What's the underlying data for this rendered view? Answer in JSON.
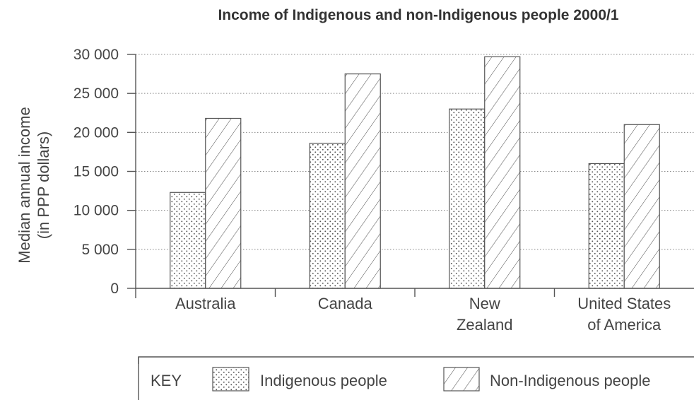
{
  "chart_data": {
    "type": "bar",
    "title": "Income of Indigenous and non-Indigenous people 2000/1",
    "ylabel": [
      "Median annual income",
      "(in PPP dollars)"
    ],
    "xlabel": "",
    "ylim": [
      0,
      30000
    ],
    "yticks": [
      0,
      5000,
      10000,
      15000,
      20000,
      25000,
      30000
    ],
    "ytick_labels": [
      "0",
      "5 000",
      "10 000",
      "15 000",
      "20 000",
      "25 000",
      "30 000"
    ],
    "grid": true,
    "categories": [
      [
        "Australia"
      ],
      [
        "Canada"
      ],
      [
        "New",
        "Zealand"
      ],
      [
        "United States",
        "of America"
      ]
    ],
    "series": [
      {
        "name": "Indigenous people",
        "pattern": "dots",
        "values": [
          12300,
          18600,
          23000,
          16000
        ]
      },
      {
        "name": "Non-Indigenous people",
        "pattern": "hatch",
        "values": [
          21800,
          27500,
          29700,
          21000
        ]
      }
    ],
    "legend": {
      "key_label": "KEY",
      "placement": "bottom"
    }
  }
}
